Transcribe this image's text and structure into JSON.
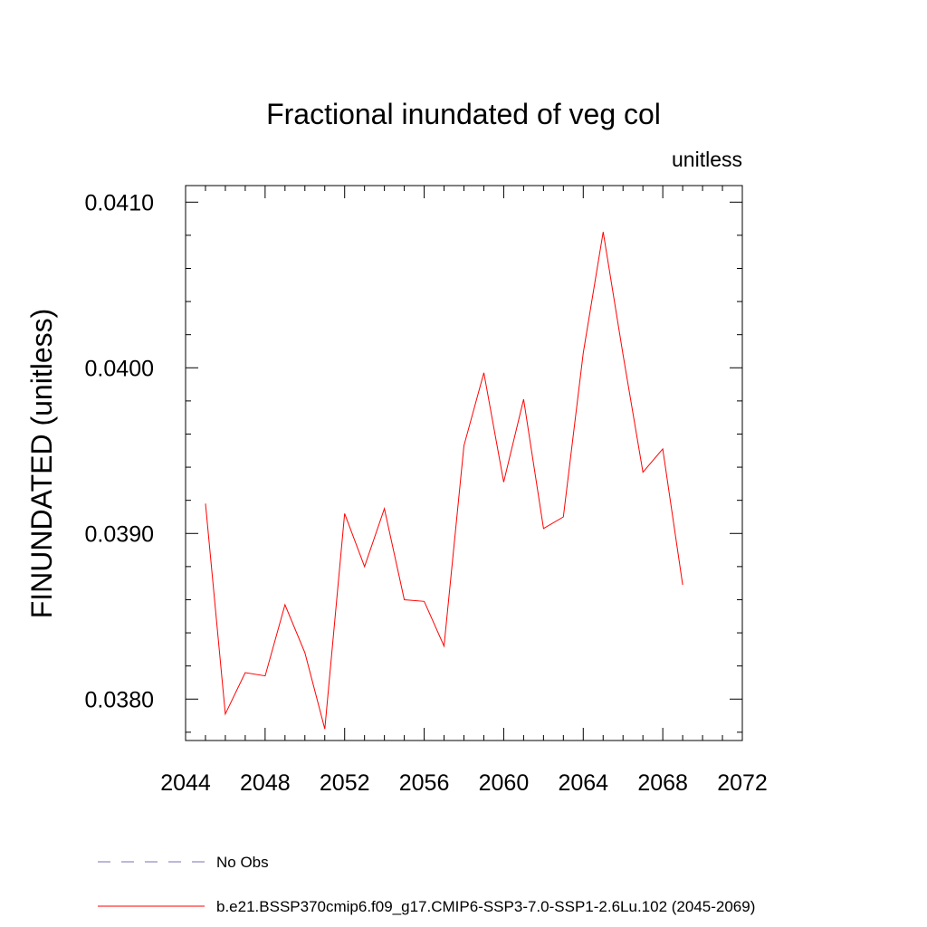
{
  "chart_data": {
    "type": "line",
    "title": "Fractional inundated of veg col",
    "units_label": "unitless",
    "ylabel": "FINUNDATED  (unitless)",
    "xlabel": "",
    "xlim": [
      2044,
      2072
    ],
    "ylim": [
      0.03775,
      0.0411
    ],
    "x_ticks": [
      2044,
      2048,
      2052,
      2056,
      2060,
      2064,
      2068,
      2072
    ],
    "x_tick_labels": [
      "2044",
      "2048",
      "2052",
      "2056",
      "2060",
      "2064",
      "2068",
      "2072"
    ],
    "y_ticks": [
      0.038,
      0.039,
      0.04,
      0.041
    ],
    "y_tick_labels": [
      "0.0380",
      "0.0390",
      "0.0400",
      "0.0410"
    ],
    "grid": false,
    "legend_position": "bottom",
    "series": [
      {
        "name": "b.e21.BSSP370cmip6.f09_g17.CMIP6-SSP3-7.0-SSP1-2.6Lu.102 (2045-2069)",
        "color": "#ff0000",
        "dash": "solid",
        "x": [
          2045,
          2046,
          2047,
          2048,
          2049,
          2050,
          2051,
          2052,
          2053,
          2054,
          2055,
          2056,
          2057,
          2058,
          2059,
          2060,
          2061,
          2062,
          2063,
          2064,
          2065,
          2066,
          2067,
          2068,
          2069
        ],
        "values": [
          0.03918,
          0.03791,
          0.03816,
          0.03814,
          0.03857,
          0.03828,
          0.03782,
          0.03912,
          0.0388,
          0.03915,
          0.0386,
          0.03859,
          0.03832,
          0.03953,
          0.03997,
          0.03931,
          0.03981,
          0.03903,
          0.0391,
          0.04009,
          0.04082,
          0.04008,
          0.03937,
          0.03951,
          0.03869
        ]
      }
    ],
    "legend": [
      {
        "label": "No Obs",
        "color": "#7b6fb5",
        "dash": "dashed"
      },
      {
        "label": "b.e21.BSSP370cmip6.f09_g17.CMIP6-SSP3-7.0-SSP1-2.6Lu.102 (2045-2069)",
        "color": "#ff0000",
        "dash": "solid"
      }
    ]
  }
}
